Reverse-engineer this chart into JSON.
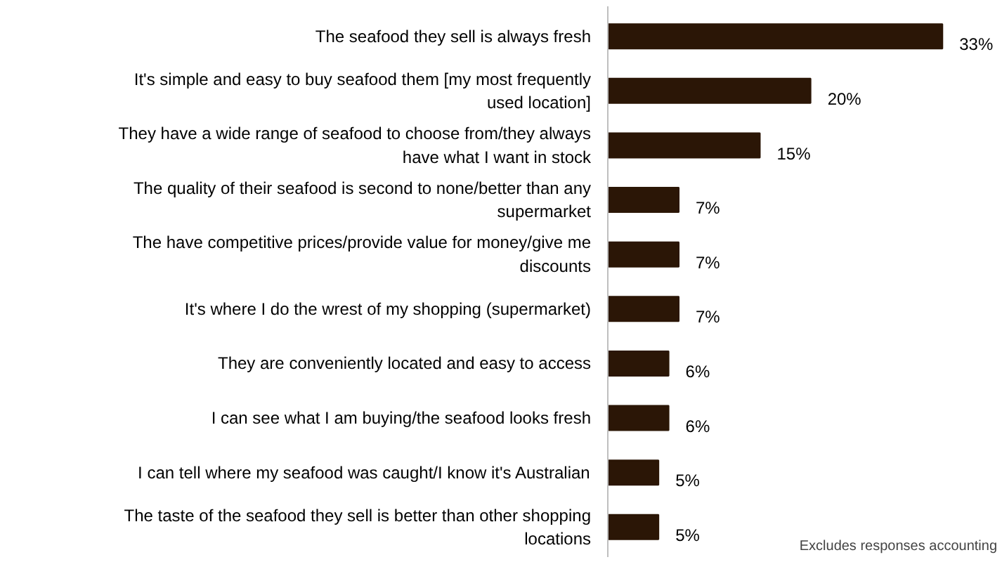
{
  "chart_data": {
    "type": "bar",
    "orientation": "horizontal",
    "categories": [
      "The seafood they sell is always fresh",
      "It's simple and easy to buy seafood them [my most frequently used location]",
      "They have a wide range of seafood to choose from/they always have what I want in stock",
      "The quality of their seafood is second to none/better than any supermarket",
      "The have competitive prices/provide value for money/give me discounts",
      "It's where I do the wrest of my shopping (supermarket)",
      "They are conveniently located and easy to access",
      "I can see what I am buying/the seafood looks fresh",
      "I can tell where my seafood was caught/I know it's Australian",
      "The taste of the seafood they sell is better than other shopping locations"
    ],
    "values": [
      33,
      20,
      15,
      7,
      7,
      7,
      6,
      6,
      5,
      5
    ],
    "value_labels": [
      "33%",
      "20%",
      "15%",
      "7%",
      "7%",
      "7%",
      "6%",
      "6%",
      "5%",
      "5%"
    ],
    "color": "#2b1606",
    "annotations": [
      "Excludes responses accounting"
    ]
  }
}
